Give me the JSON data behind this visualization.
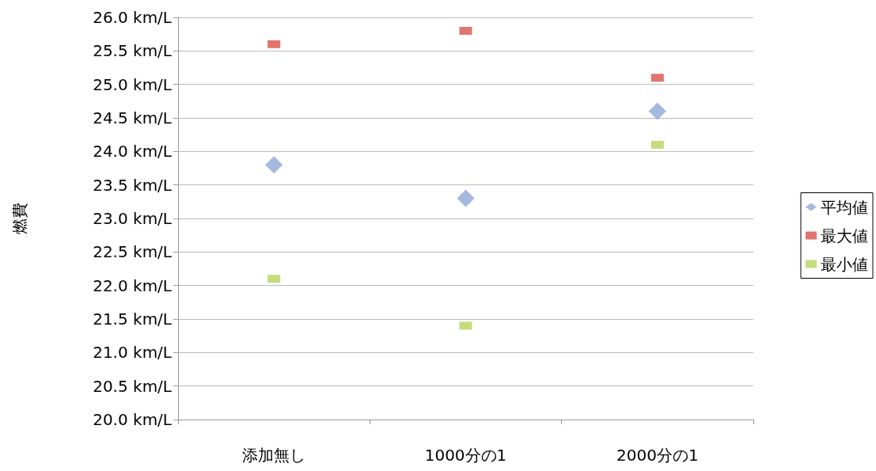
{
  "chart_data": {
    "type": "scatter",
    "ylabel": "燃費",
    "categories": [
      "添加無し",
      "1000分の1",
      "2000分の1"
    ],
    "series": [
      {
        "name": "平均値",
        "color": "#8ea6d8",
        "marker": "diamond",
        "values": [
          23.8,
          23.3,
          24.6
        ]
      },
      {
        "name": "最大値",
        "color": "#d9534a",
        "marker": "square",
        "values": [
          25.6,
          25.8,
          25.1
        ]
      },
      {
        "name": "最小値",
        "color": "#b5d35a",
        "marker": "square",
        "values": [
          22.1,
          21.4,
          24.1
        ]
      }
    ],
    "ylim": [
      20,
      26
    ],
    "yticks": [
      {
        "value": 20,
        "label": "20.0 km/L"
      },
      {
        "value": 20.5,
        "label": "20.5 km/L"
      },
      {
        "value": 21,
        "label": "21.0 km/L"
      },
      {
        "value": 21.5,
        "label": "21.5 km/L"
      },
      {
        "value": 22,
        "label": "22.0 km/L"
      },
      {
        "value": 22.5,
        "label": "22.5 km/L"
      },
      {
        "value": 23,
        "label": "23.0 km/L"
      },
      {
        "value": 23.5,
        "label": "23.5 km/L"
      },
      {
        "value": 24,
        "label": "24.0 km/L"
      },
      {
        "value": 24.5,
        "label": "24.5 km/L"
      },
      {
        "value": 25,
        "label": "25.0 km/L"
      },
      {
        "value": 25.5,
        "label": "25.5 km/L"
      },
      {
        "value": 26,
        "label": "26.0 km/L"
      }
    ],
    "grid": "y",
    "legend": "right"
  }
}
